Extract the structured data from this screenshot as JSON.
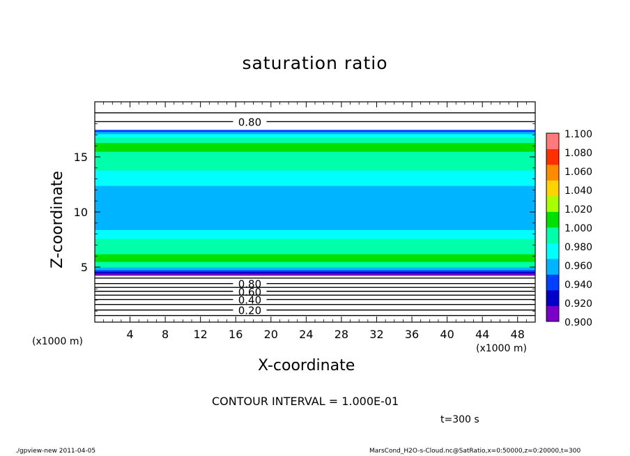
{
  "chart_data": {
    "type": "heatmap",
    "title": "saturation ratio",
    "xlabel": "X-coordinate",
    "ylabel": "Z-coordinate",
    "x_unit_label": "(x1000 m)",
    "xlim": [
      0,
      50
    ],
    "ylim": [
      0,
      20
    ],
    "x_ticks": [
      4,
      8,
      12,
      16,
      20,
      24,
      28,
      32,
      36,
      40,
      44,
      48
    ],
    "x_tick_labels": [
      "4",
      "8",
      "12",
      "16",
      "20",
      "24",
      "28",
      "32",
      "36",
      "40",
      "44",
      "48"
    ],
    "y_ticks": [
      5,
      10,
      15
    ],
    "y_tick_labels": [
      "5",
      "10",
      "15"
    ],
    "field_profile": {
      "z": [
        4.25,
        4.45,
        4.6,
        4.75,
        5.0,
        5.5,
        6.2,
        6.9,
        7.6,
        8.4,
        9.0,
        10.0,
        11.0,
        11.7,
        12.4,
        13.2,
        13.8,
        14.6,
        15.5,
        16.3,
        16.8,
        17.1,
        17.3,
        17.45
      ],
      "value": [
        0.85,
        0.905,
        0.93,
        0.955,
        0.99,
        1.0,
        0.99,
        0.98,
        0.965,
        0.955,
        0.945,
        0.945,
        0.945,
        0.95,
        0.965,
        0.975,
        0.985,
        0.995,
        1.0,
        0.995,
        0.975,
        0.95,
        0.92,
        0.88
      ]
    },
    "contour_lines": [
      {
        "z": 0.6,
        "value": 0.1,
        "label": ""
      },
      {
        "z": 1.1,
        "value": 0.2,
        "label": "0.20"
      },
      {
        "z": 1.6,
        "value": 0.3,
        "label": ""
      },
      {
        "z": 2.05,
        "value": 0.4,
        "label": "0.40"
      },
      {
        "z": 2.45,
        "value": 0.5,
        "label": ""
      },
      {
        "z": 2.8,
        "value": 0.6,
        "label": "0.60"
      },
      {
        "z": 3.15,
        "value": 0.7,
        "label": ""
      },
      {
        "z": 3.5,
        "value": 0.8,
        "label": "0.80"
      },
      {
        "z": 4.0,
        "value": 0.9,
        "label": ""
      },
      {
        "z": 18.2,
        "value": 0.8,
        "label": "0.80"
      },
      {
        "z": 19.0,
        "value": 0.7,
        "label": ""
      }
    ],
    "colorbar": {
      "levels": [
        0.9,
        0.92,
        0.94,
        0.96,
        0.98,
        1.0,
        1.02,
        1.04,
        1.06,
        1.08,
        1.1
      ],
      "labels": [
        "0.900",
        "0.920",
        "0.940",
        "0.960",
        "0.980",
        "1.000",
        "1.020",
        "1.040",
        "1.060",
        "1.080",
        "1.100"
      ],
      "colors": [
        "#7a00c8",
        "#0000c8",
        "#0040ff",
        "#00b4ff",
        "#00ffff",
        "#00ffaa",
        "#00e000",
        "#a8ff00",
        "#ffd400",
        "#ff8c00",
        "#ff3000",
        "#ff7a7a"
      ]
    },
    "contour_interval_text": "CONTOUR INTERVAL = 1.000E-01",
    "time_text": "t=300 s"
  },
  "footer": {
    "left": "./gpview-new  2011-04-05",
    "right": "MarsCond_H2O-s-Cloud.nc@SatRatio,x=0:50000,z=0:20000,t=300"
  }
}
